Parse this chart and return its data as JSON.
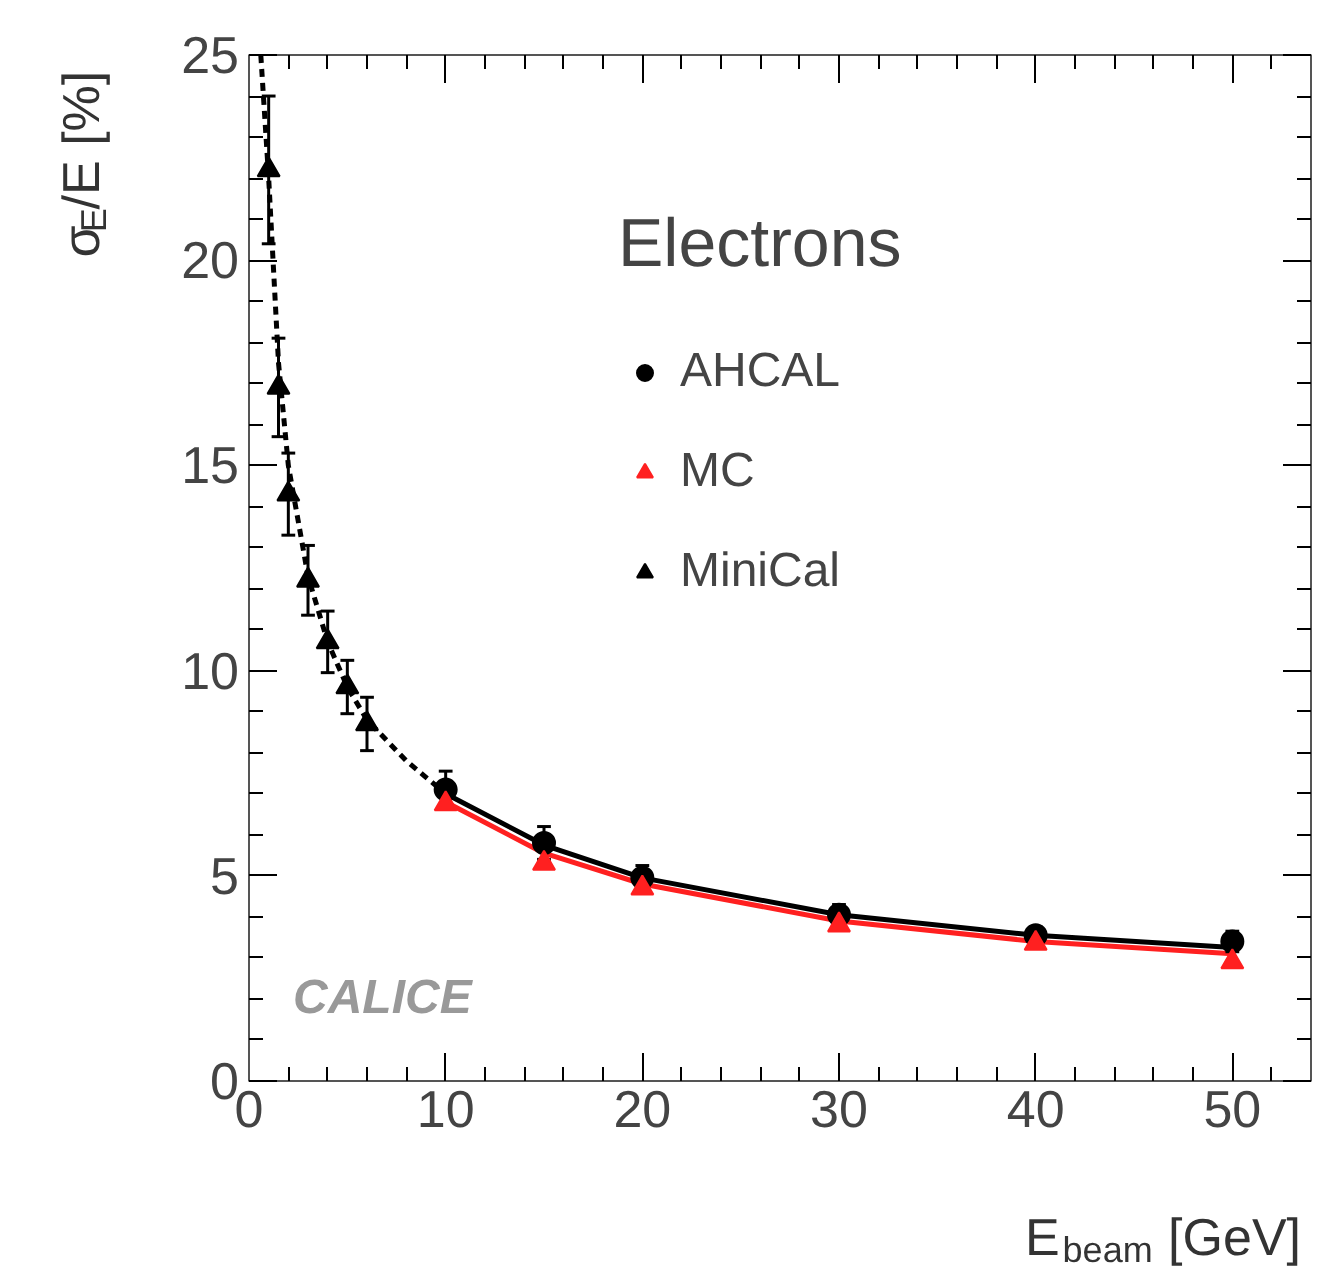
{
  "chart_data": {
    "type": "scatter",
    "xlabel": "E$_{beam}$ [GeV]",
    "ylabel": "σ$_{E}$/E [%]",
    "legend_title": "Electrons",
    "xlim": [
      0,
      54
    ],
    "ylim": [
      0,
      25
    ],
    "xticks": [
      0,
      10,
      20,
      30,
      40,
      50
    ],
    "yticks": [
      0,
      5,
      10,
      15,
      20,
      25
    ],
    "grid": false,
    "legend": "top right",
    "annotations": [
      "CALICE"
    ],
    "series": [
      {
        "name": "AHCAL",
        "marker": "circle",
        "color": "#000000",
        "x": [
          10,
          15,
          20,
          30,
          40,
          50
        ],
        "values": [
          7.1,
          5.8,
          4.95,
          4.05,
          3.55,
          3.4
        ],
        "errors": [
          0.45,
          0.4,
          0.3,
          0.25,
          0.2,
          0.25
        ]
      },
      {
        "name": "MC",
        "marker": "triangle",
        "color": "#ff2020",
        "x": [
          10,
          15,
          20,
          30,
          40,
          50
        ],
        "values": [
          6.75,
          5.3,
          4.7,
          3.8,
          3.35,
          2.9
        ]
      },
      {
        "name": "MiniCal",
        "marker": "triangle",
        "color": "#000000",
        "x": [
          1,
          1.5,
          2,
          3,
          4,
          5,
          6
        ],
        "values": [
          22.2,
          16.9,
          14.3,
          12.2,
          10.7,
          9.6,
          8.7
        ],
        "errors": [
          1.8,
          1.2,
          1.0,
          0.85,
          0.75,
          0.65,
          0.65
        ]
      },
      {
        "type": "line",
        "line_style": "solid",
        "color": "#000000",
        "x": [
          10,
          15,
          20,
          30,
          40,
          50
        ],
        "values": [
          7.0,
          5.75,
          4.95,
          4.05,
          3.55,
          3.25
        ]
      },
      {
        "type": "line",
        "line_style": "solid",
        "color": "#ff2020",
        "x": [
          10,
          15,
          20,
          30,
          40,
          50
        ],
        "values": [
          6.8,
          5.55,
          4.8,
          3.9,
          3.4,
          3.1
        ]
      },
      {
        "type": "line",
        "line_style": "dashed",
        "color": "#000000",
        "x": [
          0.6,
          1,
          1.5,
          2,
          3,
          4,
          5,
          6,
          8,
          10
        ],
        "values": [
          25,
          22,
          17.5,
          15,
          12.3,
          10.7,
          9.6,
          8.8,
          7.8,
          7.0
        ]
      }
    ]
  }
}
